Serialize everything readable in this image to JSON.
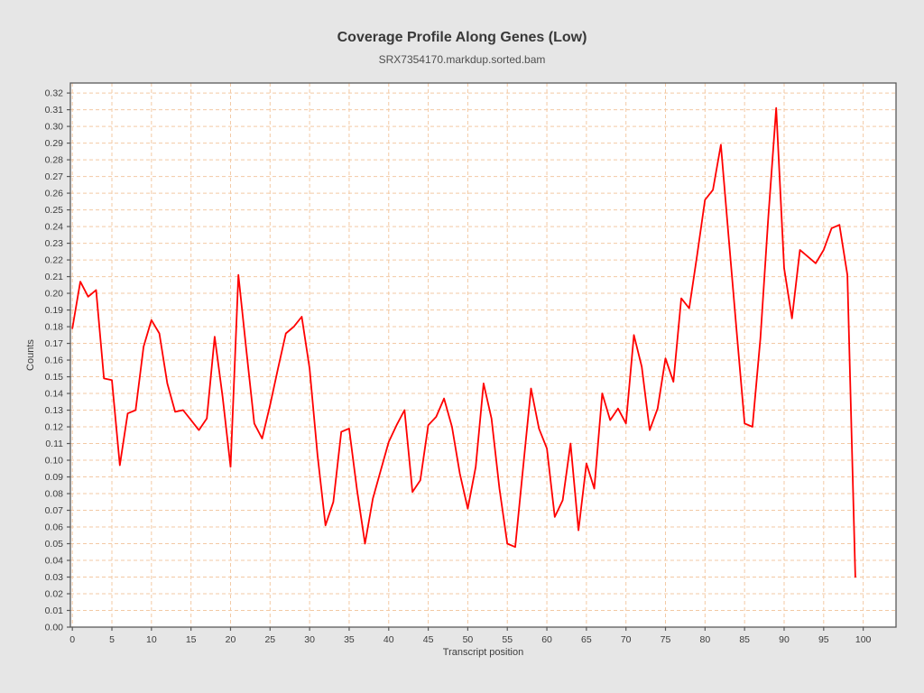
{
  "header": {
    "title": "Coverage Profile Along Genes (Low)",
    "subtitle": "SRX7354170.markdup.sorted.bam"
  },
  "chart_data": {
    "type": "line",
    "title": "Coverage Profile Along Genes (Low)",
    "subtitle": "SRX7354170.markdup.sorted.bam",
    "xlabel": "Transcript position",
    "ylabel": "Counts",
    "legend": "none",
    "grid": "dashed",
    "xlim": [
      -0.25,
      104.15
    ],
    "ylim": [
      0,
      0.326
    ],
    "xticks": [
      "0",
      "5",
      "10",
      "15",
      "20",
      "25",
      "30",
      "35",
      "40",
      "45",
      "50",
      "55",
      "60",
      "65",
      "70",
      "75",
      "80",
      "85",
      "90",
      "95",
      "100"
    ],
    "yticks": [
      "0.00",
      "0.01",
      "0.02",
      "0.03",
      "0.04",
      "0.05",
      "0.06",
      "0.07",
      "0.08",
      "0.09",
      "0.10",
      "0.11",
      "0.12",
      "0.13",
      "0.14",
      "0.15",
      "0.16",
      "0.17",
      "0.18",
      "0.19",
      "0.20",
      "0.21",
      "0.22",
      "0.23",
      "0.24",
      "0.25",
      "0.26",
      "0.27",
      "0.28",
      "0.29",
      "0.30",
      "0.31",
      "0.32"
    ],
    "x": [
      0,
      1,
      2,
      3,
      4,
      5,
      6,
      7,
      8,
      9,
      10,
      11,
      12,
      13,
      14,
      15,
      16,
      17,
      18,
      19,
      20,
      21,
      22,
      23,
      24,
      25,
      26,
      27,
      28,
      29,
      30,
      31,
      32,
      33,
      34,
      35,
      36,
      37,
      38,
      39,
      40,
      41,
      42,
      43,
      44,
      45,
      46,
      47,
      48,
      49,
      50,
      51,
      52,
      53,
      54,
      55,
      56,
      57,
      58,
      59,
      60,
      61,
      62,
      63,
      64,
      65,
      66,
      67,
      68,
      69,
      70,
      71,
      72,
      73,
      74,
      75,
      76,
      77,
      78,
      79,
      80,
      81,
      82,
      83,
      84,
      85,
      86,
      87,
      88,
      89,
      90,
      91,
      92,
      93,
      94,
      95,
      96,
      97,
      98,
      99
    ],
    "values": [
      0.179,
      0.207,
      0.198,
      0.202,
      0.149,
      0.148,
      0.097,
      0.128,
      0.13,
      0.168,
      0.184,
      0.176,
      0.146,
      0.129,
      0.13,
      0.124,
      0.118,
      0.125,
      0.174,
      0.138,
      0.096,
      0.211,
      0.166,
      0.122,
      0.113,
      0.133,
      0.155,
      0.176,
      0.18,
      0.186,
      0.155,
      0.103,
      0.061,
      0.075,
      0.117,
      0.119,
      0.082,
      0.05,
      0.077,
      0.094,
      0.111,
      0.121,
      0.13,
      0.081,
      0.088,
      0.121,
      0.126,
      0.137,
      0.12,
      0.092,
      0.071,
      0.096,
      0.146,
      0.125,
      0.083,
      0.05,
      0.048,
      0.096,
      0.143,
      0.119,
      0.107,
      0.066,
      0.076,
      0.11,
      0.058,
      0.098,
      0.083,
      0.14,
      0.124,
      0.131,
      0.122,
      0.175,
      0.156,
      0.118,
      0.131,
      0.161,
      0.147,
      0.197,
      0.191,
      0.223,
      0.256,
      0.262,
      0.289,
      0.233,
      0.177,
      0.122,
      0.12,
      0.173,
      0.246,
      0.311,
      0.215,
      0.185,
      0.226,
      0.222,
      0.218,
      0.226,
      0.239,
      0.241,
      0.211,
      0.03
    ],
    "colors": {
      "series": "#ff0000",
      "grid": "#f3c9a4",
      "axis": "#5a5a5a",
      "tick_text": "#3c3c3c",
      "plot_background": "#ffffff",
      "outer_background": "#e6e6e6"
    }
  }
}
